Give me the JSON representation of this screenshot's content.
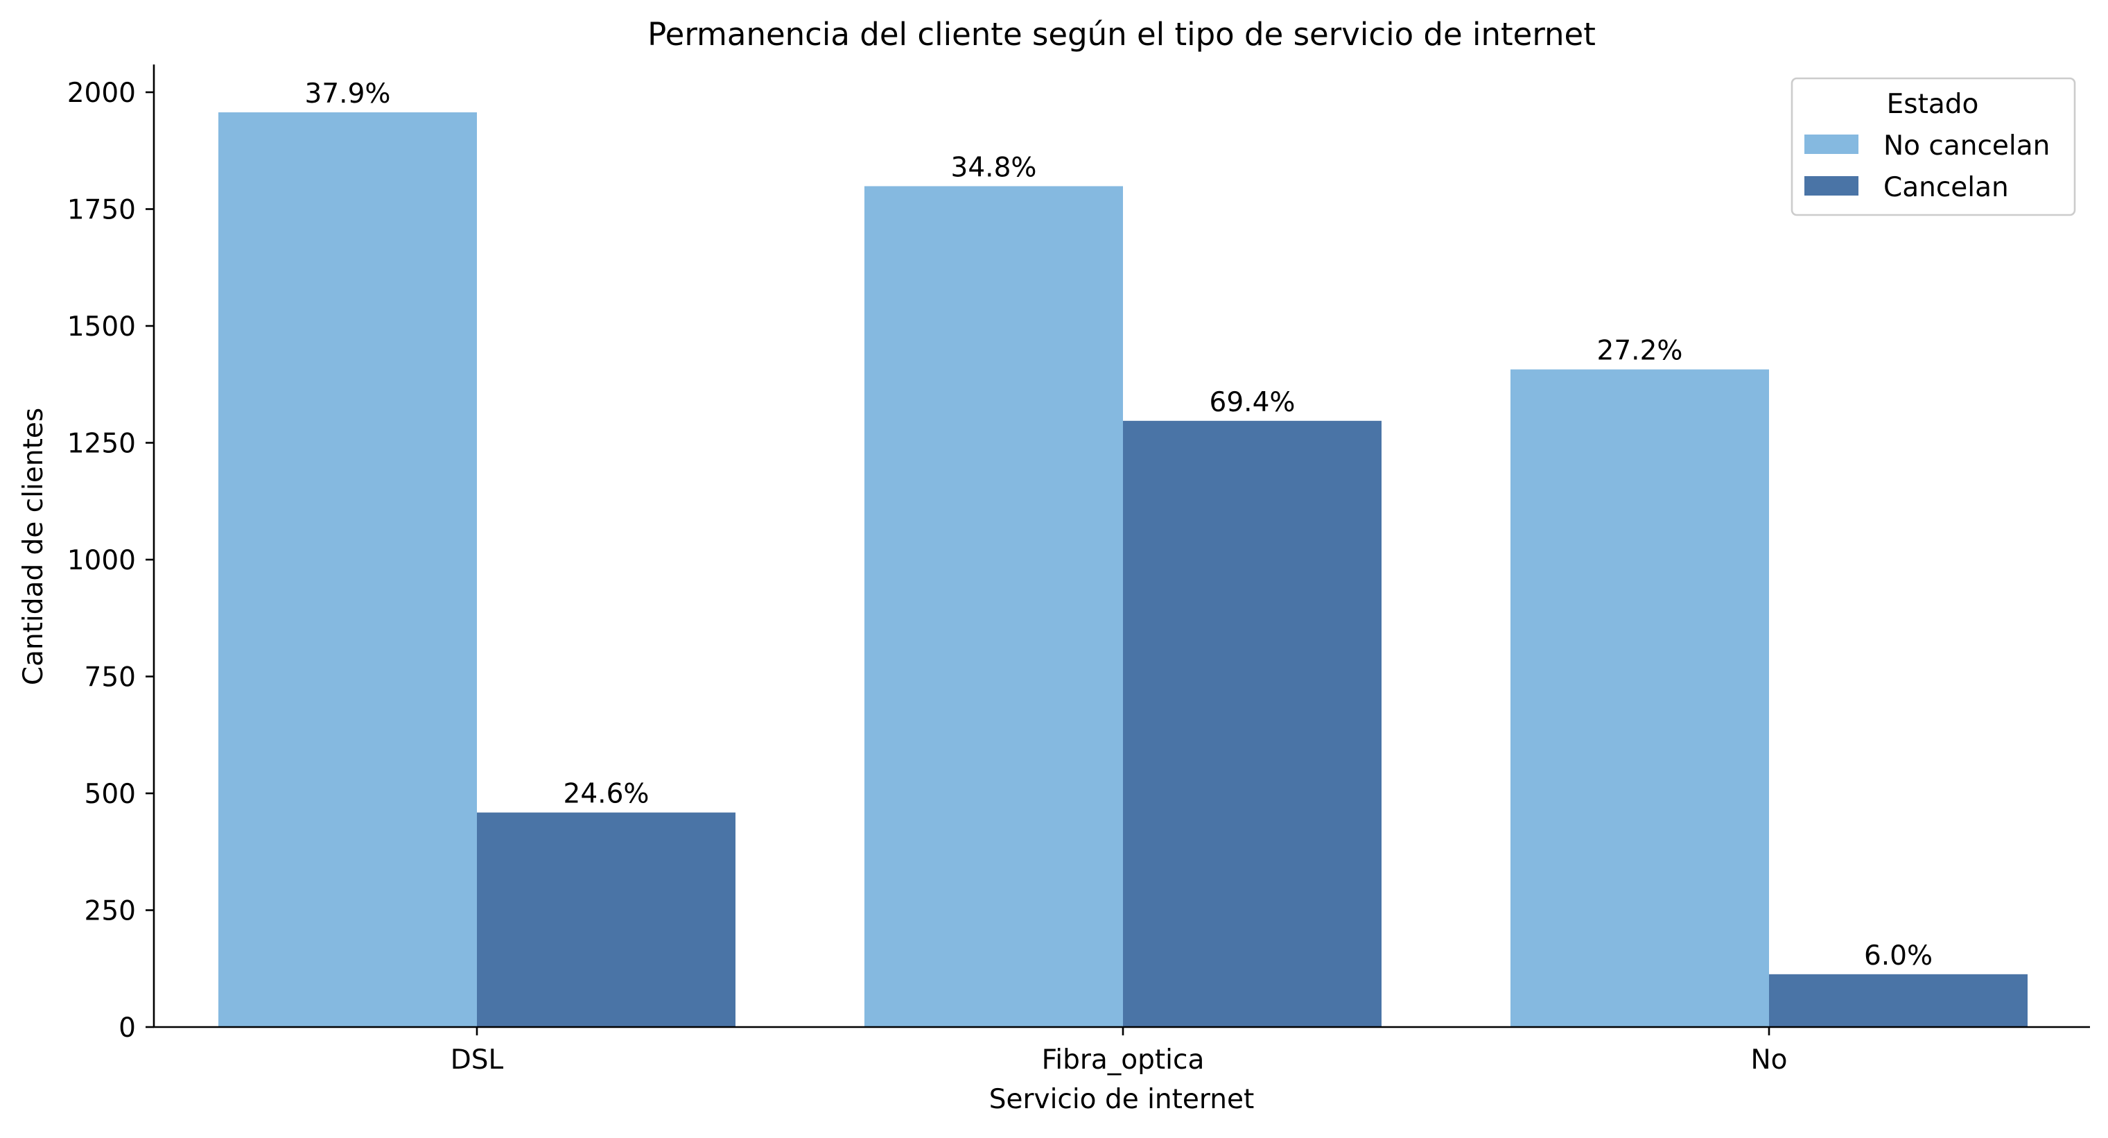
{
  "chart_data": {
    "type": "bar",
    "title": "Permanencia del cliente según el tipo de servicio de internet",
    "xlabel": "Servicio de internet",
    "ylabel": "Cantidad de clientes",
    "categories": [
      "DSL",
      "Fibra_optica",
      "No"
    ],
    "ylim": [
      0,
      2055
    ],
    "yticks": [
      0,
      250,
      500,
      750,
      1000,
      1250,
      1500,
      1750,
      2000
    ],
    "ytick_labels": [
      "0",
      "250",
      "500",
      "750",
      "1000",
      "1250",
      "1500",
      "1750",
      "2000"
    ],
    "grid": false,
    "legend": {
      "title": "Estado",
      "placement": "top-right"
    },
    "series": [
      {
        "name": "No cancelan",
        "color": "#85b9e0",
        "values": [
          1957,
          1799,
          1407
        ],
        "labels": [
          "37.9%",
          "34.8%",
          "27.2%"
        ]
      },
      {
        "name": "Cancelan",
        "color": "#4a74a6",
        "values": [
          459,
          1297,
          113
        ],
        "labels": [
          "24.6%",
          "69.4%",
          "6.0%"
        ]
      }
    ]
  }
}
